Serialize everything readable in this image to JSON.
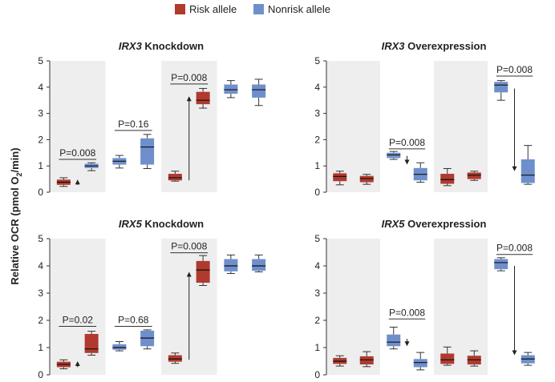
{
  "legend": {
    "risk_label": "Risk allele",
    "nonrisk_label": "Nonrisk allele"
  },
  "colors": {
    "risk": "#b03a2e",
    "nonrisk": "#6f8fcc",
    "band": "#eeeeef"
  },
  "y_axis_label": "Relative OCR (pmol O2/min)",
  "chart_data": [
    {
      "type": "box",
      "title_gene": "IRX3",
      "title_rest": "Knockdown",
      "ylim": [
        0,
        5
      ],
      "yticks": [
        "0",
        "1",
        "2",
        "3",
        "4",
        "5"
      ],
      "boxes": [
        {
          "allele": "risk",
          "min": 0.22,
          "q1": 0.28,
          "median": 0.38,
          "q3": 0.48,
          "max": 0.55
        },
        {
          "allele": "nonrisk",
          "min": 0.82,
          "q1": 0.92,
          "median": 1.0,
          "q3": 1.08,
          "max": 1.12
        },
        {
          "allele": "nonrisk",
          "min": 0.92,
          "q1": 1.05,
          "median": 1.18,
          "q3": 1.3,
          "max": 1.4
        },
        {
          "allele": "nonrisk",
          "min": 0.9,
          "q1": 1.05,
          "median": 1.72,
          "q3": 2.05,
          "max": 2.2
        },
        {
          "allele": "risk",
          "min": 0.42,
          "q1": 0.45,
          "median": 0.55,
          "q3": 0.7,
          "max": 0.8
        },
        {
          "allele": "risk",
          "min": 3.2,
          "q1": 3.35,
          "median": 3.5,
          "q3": 3.82,
          "max": 3.95
        },
        {
          "allele": "nonrisk",
          "min": 3.6,
          "q1": 3.75,
          "median": 3.9,
          "q3": 4.1,
          "max": 4.25
        },
        {
          "allele": "nonrisk",
          "min": 3.3,
          "q1": 3.6,
          "median": 3.9,
          "q3": 4.1,
          "max": 4.3
        }
      ],
      "annotations": [
        {
          "text": "P=0.008",
          "from": 0,
          "to": 1,
          "y": 1.25
        },
        {
          "text": "P=0.16",
          "from": 2,
          "to": 3,
          "y": 2.35
        },
        {
          "text": "P=0.008",
          "from": 4,
          "to": 5,
          "y": 4.12
        }
      ],
      "arrows": [
        {
          "x_between": [
            0,
            1
          ],
          "y_from": 0.28,
          "y_to": 0.48
        },
        {
          "x_between": [
            4,
            5
          ],
          "y_from": 0.45,
          "y_to": 3.65
        }
      ]
    },
    {
      "type": "box",
      "title_gene": "IRX3",
      "title_rest": "Overexpression",
      "ylim": [
        0,
        5
      ],
      "yticks": [
        "0",
        "1",
        "2",
        "3",
        "4",
        "5"
      ],
      "boxes": [
        {
          "allele": "risk",
          "min": 0.28,
          "q1": 0.42,
          "median": 0.6,
          "q3": 0.72,
          "max": 0.8
        },
        {
          "allele": "risk",
          "min": 0.3,
          "q1": 0.38,
          "median": 0.52,
          "q3": 0.62,
          "max": 0.68
        },
        {
          "allele": "nonrisk",
          "min": 1.25,
          "q1": 1.3,
          "median": 1.42,
          "q3": 1.5,
          "max": 1.55
        },
        {
          "allele": "nonrisk",
          "min": 0.38,
          "q1": 0.45,
          "median": 0.68,
          "q3": 0.92,
          "max": 1.12
        },
        {
          "allele": "risk",
          "min": 0.25,
          "q1": 0.32,
          "median": 0.48,
          "q3": 0.7,
          "max": 0.9
        },
        {
          "allele": "risk",
          "min": 0.45,
          "q1": 0.5,
          "median": 0.65,
          "q3": 0.75,
          "max": 0.8
        },
        {
          "allele": "nonrisk",
          "min": 3.5,
          "q1": 3.8,
          "median": 4.08,
          "q3": 4.2,
          "max": 4.25
        },
        {
          "allele": "nonrisk",
          "min": 0.3,
          "q1": 0.35,
          "median": 0.65,
          "q3": 1.25,
          "max": 1.78
        }
      ],
      "annotations": [
        {
          "text": "P=0.008",
          "from": 2,
          "to": 3,
          "y": 1.65
        },
        {
          "text": "P=0.008",
          "from": 6,
          "to": 7,
          "y": 4.42
        }
      ],
      "arrows": [
        {
          "x_between": [
            2,
            3
          ],
          "y_from": 1.38,
          "y_to": 1.05
        },
        {
          "x_between": [
            6,
            7
          ],
          "y_from": 3.95,
          "y_to": 0.8
        }
      ]
    },
    {
      "type": "box",
      "title_gene": "IRX5",
      "title_rest": "Knockdown",
      "ylim": [
        0,
        5
      ],
      "yticks": [
        "0",
        "1",
        "2",
        "3",
        "4",
        "5"
      ],
      "boxes": [
        {
          "allele": "risk",
          "min": 0.22,
          "q1": 0.28,
          "median": 0.38,
          "q3": 0.48,
          "max": 0.55
        },
        {
          "allele": "risk",
          "min": 0.72,
          "q1": 0.8,
          "median": 0.95,
          "q3": 1.5,
          "max": 1.6
        },
        {
          "allele": "nonrisk",
          "min": 0.88,
          "q1": 0.92,
          "median": 1.0,
          "q3": 1.12,
          "max": 1.22
        },
        {
          "allele": "nonrisk",
          "min": 0.95,
          "q1": 1.05,
          "median": 1.35,
          "q3": 1.62,
          "max": 1.65
        },
        {
          "allele": "risk",
          "min": 0.42,
          "q1": 0.48,
          "median": 0.58,
          "q3": 0.72,
          "max": 0.8
        },
        {
          "allele": "risk",
          "min": 3.28,
          "q1": 3.38,
          "median": 3.85,
          "q3": 4.18,
          "max": 4.38
        },
        {
          "allele": "nonrisk",
          "min": 3.72,
          "q1": 3.8,
          "median": 4.0,
          "q3": 4.25,
          "max": 4.4
        },
        {
          "allele": "nonrisk",
          "min": 3.78,
          "q1": 3.82,
          "median": 4.0,
          "q3": 4.25,
          "max": 4.4
        }
      ],
      "annotations": [
        {
          "text": "P=0.02",
          "from": 0,
          "to": 1,
          "y": 1.78
        },
        {
          "text": "P=0.68",
          "from": 2,
          "to": 3,
          "y": 1.78
        },
        {
          "text": "P=0.008",
          "from": 4,
          "to": 5,
          "y": 4.48
        }
      ],
      "arrows": [
        {
          "x_between": [
            0,
            1
          ],
          "y_from": 0.28,
          "y_to": 0.5
        },
        {
          "x_between": [
            4,
            5
          ],
          "y_from": 0.55,
          "y_to": 3.78
        }
      ]
    },
    {
      "type": "box",
      "title_gene": "IRX5",
      "title_rest": "Overexpression",
      "ylim": [
        0,
        5
      ],
      "yticks": [
        "0",
        "1",
        "2",
        "3",
        "4",
        "5"
      ],
      "boxes": [
        {
          "allele": "risk",
          "min": 0.32,
          "q1": 0.4,
          "median": 0.5,
          "q3": 0.62,
          "max": 0.7
        },
        {
          "allele": "risk",
          "min": 0.3,
          "q1": 0.38,
          "median": 0.55,
          "q3": 0.68,
          "max": 0.85
        },
        {
          "allele": "nonrisk",
          "min": 0.95,
          "q1": 1.05,
          "median": 1.2,
          "q3": 1.48,
          "max": 1.75
        },
        {
          "allele": "nonrisk",
          "min": 0.18,
          "q1": 0.28,
          "median": 0.45,
          "q3": 0.58,
          "max": 0.82
        },
        {
          "allele": "risk",
          "min": 0.35,
          "q1": 0.4,
          "median": 0.55,
          "q3": 0.78,
          "max": 1.02
        },
        {
          "allele": "risk",
          "min": 0.32,
          "q1": 0.38,
          "median": 0.55,
          "q3": 0.7,
          "max": 0.88
        },
        {
          "allele": "nonrisk",
          "min": 3.82,
          "q1": 3.88,
          "median": 4.12,
          "q3": 4.25,
          "max": 4.3
        },
        {
          "allele": "nonrisk",
          "min": 0.35,
          "q1": 0.42,
          "median": 0.58,
          "q3": 0.72,
          "max": 0.82
        }
      ],
      "annotations": [
        {
          "text": "P=0.008",
          "from": 2,
          "to": 3,
          "y": 2.05
        },
        {
          "text": "P=0.008",
          "from": 6,
          "to": 7,
          "y": 4.42
        }
      ],
      "arrows": [
        {
          "x_between": [
            2,
            3
          ],
          "y_from": 1.32,
          "y_to": 1.05
        },
        {
          "x_between": [
            6,
            7
          ],
          "y_from": 4.0,
          "y_to": 0.72
        }
      ]
    }
  ]
}
